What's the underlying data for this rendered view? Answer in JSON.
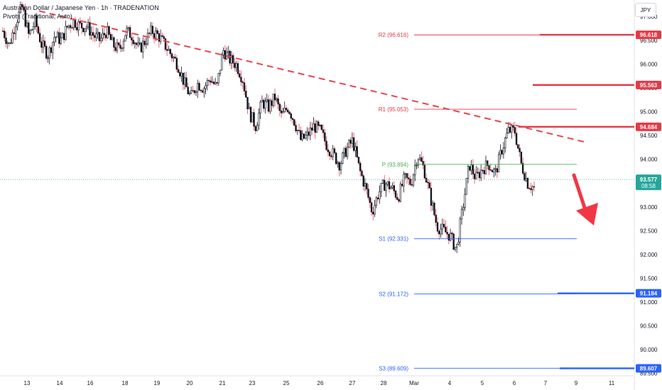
{
  "header": {
    "title": "Australian Dollar / Japanese Yen · 1h · TRADENATION",
    "indicator": "Pivots (Traditional, Auto)"
  },
  "currency_button": "JPY",
  "colors": {
    "up": "#131722",
    "down": "#131722",
    "wick_down": "#e8434f",
    "resistance": "#e63946",
    "support": "#2962ff",
    "pivot": "#4caf50",
    "trend": "#e8434f",
    "arrow": "#f23645",
    "current": "#26a69a",
    "axis_text": "#131722"
  },
  "chart_data": {
    "type": "candlestick",
    "y_axis": {
      "ylim": [
        89.45,
        97.35
      ],
      "ticks": [
        "97.000",
        "96.500",
        "96.000",
        "95.500",
        "95.000",
        "94.500",
        "94.000",
        "93.500",
        "93.000",
        "92.500",
        "92.000",
        "91.500",
        "91.000",
        "90.500",
        "90.000",
        "89.500"
      ]
    },
    "x_axis": {
      "labels": [
        "13",
        "14",
        "16",
        "18",
        "19",
        "20",
        "21",
        "23",
        "25",
        "26",
        "27",
        "28",
        "Mar",
        "4",
        "5",
        "6",
        "7",
        "9",
        "11"
      ]
    },
    "pivots": [
      {
        "label": "R2 (96.616)",
        "value": 96.616,
        "color": "#e63946"
      },
      {
        "label": "R1 (95.053)",
        "value": 95.053,
        "color": "#e63946"
      },
      {
        "label": "P (93.894)",
        "value": 93.894,
        "color": "#4caf50"
      },
      {
        "label": "S1 (92.331)",
        "value": 92.331,
        "color": "#2962ff"
      },
      {
        "label": "S2 (91.172)",
        "value": 91.172,
        "color": "#2962ff"
      },
      {
        "label": "S3 (89.609)",
        "value": 89.609,
        "color": "#2962ff"
      }
    ],
    "price_tags": [
      {
        "value": 96.618,
        "text": "96.618",
        "color": "#e63946"
      },
      {
        "value": 95.563,
        "text": "95.563",
        "color": "#e63946"
      },
      {
        "value": 94.684,
        "text": "94.684",
        "color": "#e63946"
      },
      {
        "value": 91.184,
        "text": "91.184",
        "color": "#2962ff"
      },
      {
        "value": 89.607,
        "text": "89.607",
        "color": "#2962ff"
      }
    ],
    "current_price": {
      "value": 93.577,
      "text": "93.577",
      "countdown": "08:58"
    },
    "close_path": [
      [
        0,
        96.7
      ],
      [
        2,
        96.4
      ],
      [
        4,
        96.9
      ],
      [
        6,
        97.2
      ],
      [
        8,
        96.6
      ],
      [
        10,
        96.9
      ],
      [
        12,
        96.4
      ],
      [
        14,
        96.2
      ],
      [
        16,
        96.6
      ],
      [
        18,
        96.5
      ],
      [
        20,
        96.8
      ],
      [
        22,
        96.9
      ],
      [
        24,
        96.8
      ],
      [
        26,
        96.8
      ],
      [
        28,
        96.6
      ],
      [
        30,
        96.5
      ],
      [
        32,
        96.7
      ],
      [
        34,
        96.4
      ],
      [
        36,
        96.3
      ],
      [
        38,
        96.7
      ],
      [
        40,
        96.6
      ],
      [
        42,
        96.3
      ],
      [
        44,
        96.5
      ],
      [
        46,
        96.7
      ],
      [
        48,
        96.6
      ],
      [
        50,
        96.4
      ],
      [
        52,
        96.2
      ],
      [
        54,
        96.0
      ],
      [
        56,
        95.6
      ],
      [
        58,
        95.3
      ],
      [
        60,
        95.6
      ],
      [
        62,
        95.5
      ],
      [
        64,
        95.7
      ],
      [
        66,
        95.5
      ],
      [
        68,
        96.3
      ],
      [
        70,
        96.1
      ],
      [
        72,
        96.0
      ],
      [
        74,
        95.7
      ],
      [
        76,
        95.0
      ],
      [
        78,
        94.7
      ],
      [
        80,
        95.2
      ],
      [
        82,
        95.1
      ],
      [
        84,
        95.3
      ],
      [
        86,
        94.9
      ],
      [
        88,
        95.1
      ],
      [
        90,
        94.8
      ],
      [
        92,
        94.4
      ],
      [
        94,
        94.5
      ],
      [
        96,
        94.7
      ],
      [
        98,
        94.6
      ],
      [
        100,
        94.3
      ],
      [
        102,
        94.1
      ],
      [
        104,
        93.9
      ],
      [
        106,
        94.2
      ],
      [
        108,
        94.4
      ],
      [
        110,
        93.8
      ],
      [
        112,
        93.4
      ],
      [
        114,
        92.9
      ],
      [
        116,
        93.3
      ],
      [
        118,
        93.5
      ],
      [
        120,
        93.4
      ],
      [
        122,
        93.2
      ],
      [
        124,
        93.6
      ],
      [
        126,
        93.5
      ],
      [
        128,
        94.1
      ],
      [
        130,
        93.8
      ],
      [
        132,
        93.2
      ],
      [
        134,
        92.6
      ],
      [
        136,
        92.5
      ],
      [
        138,
        92.4
      ],
      [
        140,
        92.1
      ],
      [
        142,
        93.0
      ],
      [
        144,
        93.9
      ],
      [
        146,
        93.6
      ],
      [
        148,
        93.8
      ],
      [
        150,
        93.9
      ],
      [
        152,
        93.7
      ],
      [
        154,
        94.2
      ],
      [
        156,
        94.6
      ],
      [
        158,
        94.6
      ],
      [
        160,
        93.9
      ],
      [
        162,
        93.5
      ],
      [
        164,
        93.4
      ]
    ]
  }
}
